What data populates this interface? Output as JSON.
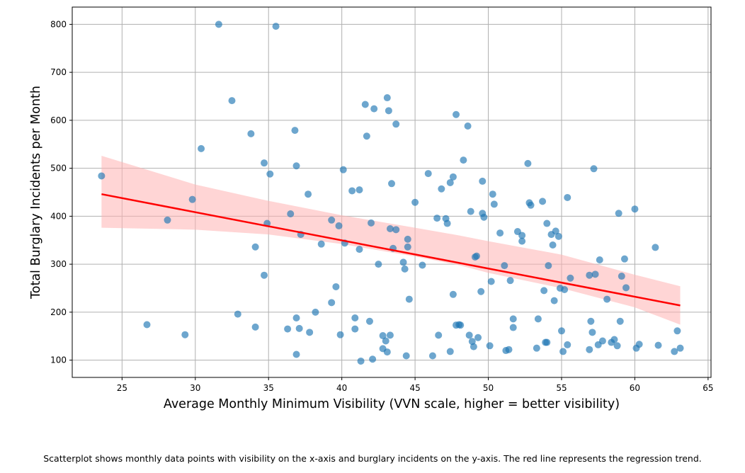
{
  "caption": "Scatterplot shows monthly data points with visibility on the x-axis and burglary incidents on the y-axis. The red line represents the regression trend.",
  "colors": {
    "points": "#1f77b4",
    "regression_line": "#ff0000",
    "confidence_band": "#ffb3b3",
    "grid": "#b0b0b0"
  },
  "chart_data": {
    "type": "scatter",
    "title": "",
    "xlabel": "Average Monthly Minimum Visibility (VVN scale, higher = better visibility)",
    "ylabel": "Total Burglary Incidents per Month",
    "xlim": [
      21.6,
      65.2
    ],
    "ylim": [
      64,
      836
    ],
    "xticks": [
      25,
      30,
      35,
      40,
      45,
      50,
      55,
      60,
      65
    ],
    "yticks": [
      100,
      200,
      300,
      400,
      500,
      600,
      700,
      800
    ],
    "grid": true,
    "regression": {
      "x": [
        23.6,
        63.1
      ],
      "y": [
        446,
        214
      ]
    },
    "confidence_band": {
      "x": [
        23.6,
        30,
        35,
        40,
        45,
        48,
        50,
        55,
        60,
        63.1
      ],
      "lower": [
        376,
        372,
        362,
        342,
        316,
        298,
        282,
        250,
        210,
        174
      ],
      "upper": [
        526,
        466,
        432,
        402,
        376,
        360,
        348,
        320,
        278,
        254
      ]
    },
    "points": [
      [
        23.6,
        484
      ],
      [
        26.7,
        174
      ],
      [
        28.1,
        392
      ],
      [
        29.3,
        153
      ],
      [
        29.8,
        435
      ],
      [
        30.4,
        541
      ],
      [
        31.6,
        800
      ],
      [
        32.5,
        641
      ],
      [
        32.9,
        196
      ],
      [
        33.8,
        572
      ],
      [
        34.1,
        336
      ],
      [
        34.1,
        169
      ],
      [
        34.7,
        511
      ],
      [
        34.7,
        277
      ],
      [
        34.9,
        385
      ],
      [
        35.1,
        488
      ],
      [
        35.5,
        796
      ],
      [
        36.3,
        165
      ],
      [
        36.5,
        405
      ],
      [
        36.8,
        579
      ],
      [
        36.9,
        505
      ],
      [
        36.9,
        188
      ],
      [
        36.9,
        112
      ],
      [
        37.1,
        166
      ],
      [
        37.2,
        362
      ],
      [
        37.7,
        446
      ],
      [
        37.8,
        158
      ],
      [
        38.2,
        200
      ],
      [
        38.6,
        342
      ],
      [
        39.3,
        392
      ],
      [
        39.3,
        220
      ],
      [
        39.6,
        253
      ],
      [
        39.8,
        380
      ],
      [
        39.9,
        153
      ],
      [
        40.1,
        497
      ],
      [
        40.2,
        344
      ],
      [
        40.7,
        453
      ],
      [
        40.9,
        188
      ],
      [
        40.9,
        165
      ],
      [
        41.2,
        455
      ],
      [
        41.2,
        331
      ],
      [
        41.3,
        98
      ],
      [
        41.6,
        633
      ],
      [
        41.7,
        567
      ],
      [
        41.9,
        181
      ],
      [
        42.0,
        386
      ],
      [
        42.2,
        624
      ],
      [
        42.1,
        102
      ],
      [
        42.5,
        300
      ],
      [
        42.8,
        151
      ],
      [
        42.8,
        124
      ],
      [
        43.0,
        140
      ],
      [
        43.1,
        647
      ],
      [
        43.2,
        620
      ],
      [
        43.1,
        117
      ],
      [
        43.3,
        152
      ],
      [
        43.3,
        374
      ],
      [
        43.4,
        468
      ],
      [
        43.5,
        333
      ],
      [
        43.7,
        592
      ],
      [
        43.7,
        372
      ],
      [
        44.2,
        304
      ],
      [
        44.3,
        290
      ],
      [
        44.5,
        352
      ],
      [
        44.4,
        109
      ],
      [
        44.5,
        336
      ],
      [
        44.6,
        227
      ],
      [
        45.0,
        429
      ],
      [
        45.5,
        298
      ],
      [
        45.9,
        489
      ],
      [
        46.2,
        109
      ],
      [
        46.5,
        396
      ],
      [
        46.6,
        152
      ],
      [
        46.8,
        457
      ],
      [
        47.1,
        395
      ],
      [
        47.2,
        385
      ],
      [
        47.4,
        118
      ],
      [
        47.4,
        470
      ],
      [
        47.6,
        482
      ],
      [
        47.6,
        237
      ],
      [
        47.8,
        612
      ],
      [
        47.8,
        173
      ],
      [
        48.0,
        174
      ],
      [
        48.1,
        173
      ],
      [
        48.3,
        517
      ],
      [
        48.6,
        588
      ],
      [
        48.7,
        152
      ],
      [
        48.8,
        410
      ],
      [
        48.9,
        139
      ],
      [
        49.0,
        128
      ],
      [
        49.1,
        315
      ],
      [
        49.2,
        317
      ],
      [
        49.3,
        147
      ],
      [
        49.5,
        243
      ],
      [
        49.6,
        473
      ],
      [
        49.6,
        406
      ],
      [
        49.7,
        398
      ],
      [
        50.1,
        130
      ],
      [
        50.2,
        264
      ],
      [
        50.3,
        446
      ],
      [
        50.4,
        425
      ],
      [
        50.8,
        365
      ],
      [
        51.1,
        297
      ],
      [
        51.2,
        120
      ],
      [
        51.4,
        122
      ],
      [
        51.5,
        266
      ],
      [
        51.7,
        186
      ],
      [
        51.7,
        168
      ],
      [
        52.0,
        368
      ],
      [
        52.3,
        360
      ],
      [
        52.3,
        348
      ],
      [
        52.7,
        510
      ],
      [
        52.8,
        428
      ],
      [
        52.9,
        423
      ],
      [
        53.3,
        125
      ],
      [
        53.4,
        186
      ],
      [
        53.7,
        431
      ],
      [
        53.8,
        245
      ],
      [
        53.9,
        137
      ],
      [
        54.0,
        137
      ],
      [
        54.0,
        385
      ],
      [
        54.1,
        297
      ],
      [
        54.3,
        362
      ],
      [
        54.4,
        340
      ],
      [
        54.5,
        224
      ],
      [
        54.6,
        369
      ],
      [
        54.8,
        358
      ],
      [
        54.9,
        250
      ],
      [
        55.0,
        161
      ],
      [
        55.1,
        118
      ],
      [
        55.2,
        247
      ],
      [
        55.4,
        439
      ],
      [
        55.4,
        132
      ],
      [
        55.6,
        271
      ],
      [
        56.9,
        277
      ],
      [
        56.9,
        122
      ],
      [
        57.0,
        181
      ],
      [
        57.1,
        158
      ],
      [
        57.2,
        499
      ],
      [
        57.3,
        279
      ],
      [
        57.5,
        132
      ],
      [
        57.6,
        309
      ],
      [
        57.8,
        140
      ],
      [
        58.1,
        227
      ],
      [
        58.4,
        137
      ],
      [
        58.6,
        143
      ],
      [
        58.8,
        130
      ],
      [
        58.9,
        406
      ],
      [
        59.0,
        181
      ],
      [
        59.1,
        275
      ],
      [
        59.3,
        311
      ],
      [
        59.4,
        251
      ],
      [
        60.0,
        415
      ],
      [
        60.1,
        125
      ],
      [
        60.3,
        133
      ],
      [
        61.4,
        335
      ],
      [
        61.6,
        131
      ],
      [
        62.7,
        118
      ],
      [
        62.9,
        161
      ],
      [
        63.1,
        125
      ]
    ]
  }
}
